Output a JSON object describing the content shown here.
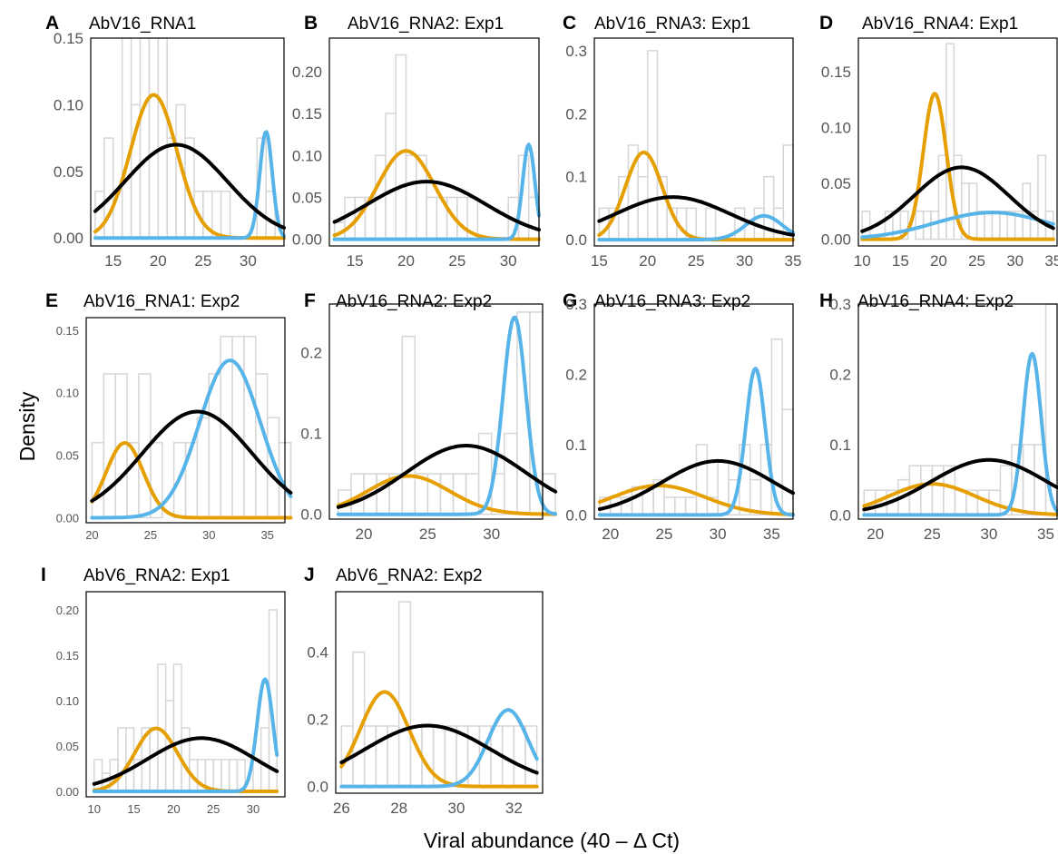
{
  "figure": {
    "ylabel": "Density",
    "xlabel": "Viral abundance (40 – Δ Ct)"
  },
  "colors": {
    "low_component": "#E69F00",
    "high_component": "#56B4E9",
    "single_component": "#000000",
    "histogram": "#d6d6d6"
  },
  "chart_data": [
    {
      "id": "A",
      "title": "AbV16_RNA1",
      "type": "histogram+density",
      "xlim": [
        12.5,
        34
      ],
      "ylim": [
        -0.006,
        0.15
      ],
      "xticks": [
        "15",
        "20",
        "25",
        "30"
      ],
      "yticks": [
        "0.00",
        "0.05",
        "0.10",
        "0.15"
      ],
      "hist": {
        "start": 13,
        "width": 1,
        "heights": [
          0.035,
          0.075,
          0.035,
          0.15,
          0.1,
          0.15,
          0.15,
          0.15,
          0.075,
          0.1,
          0.075,
          0.035,
          0.035,
          0.035,
          0.035,
          0,
          0,
          0,
          0.075,
          0.035,
          0
        ]
      },
      "series": [
        {
          "component": "low",
          "mean": 19.5,
          "sd": 2.6,
          "weight": 0.7
        },
        {
          "component": "high",
          "mean": 32.0,
          "sd": 0.7,
          "weight": 0.14
        },
        {
          "component": "single",
          "mean": 22.0,
          "sd": 5.7,
          "weight": 1.0
        }
      ]
    },
    {
      "id": "B",
      "title": "AbV16_RNA2: Exp1",
      "type": "histogram+density",
      "xlim": [
        12.5,
        33
      ],
      "ylim": [
        -0.008,
        0.24
      ],
      "xticks": [
        "15",
        "20",
        "25",
        "30"
      ],
      "yticks": [
        "0.00",
        "0.05",
        "0.10",
        "0.15",
        "0.20"
      ],
      "hist": {
        "start": 13,
        "width": 1,
        "heights": [
          0.02,
          0.05,
          0.05,
          0.05,
          0.1,
          0.15,
          0.22,
          0.1,
          0.1,
          0.05,
          0.05,
          0.05,
          0.05,
          0.05,
          0,
          0,
          0,
          0.05,
          0.1,
          0.05
        ]
      },
      "series": [
        {
          "component": "low",
          "mean": 20.0,
          "sd": 2.8,
          "weight": 0.74
        },
        {
          "component": "high",
          "mean": 32.0,
          "sd": 0.6,
          "weight": 0.17
        },
        {
          "component": "single",
          "mean": 22.0,
          "sd": 5.8,
          "weight": 1.0
        }
      ]
    },
    {
      "id": "C",
      "title": "AbV16_RNA3: Exp1",
      "type": "histogram+density",
      "xlim": [
        14.5,
        35
      ],
      "ylim": [
        -0.01,
        0.32
      ],
      "xticks": [
        "15",
        "20",
        "25",
        "30",
        "35"
      ],
      "yticks": [
        "0.0",
        "0.1",
        "0.2",
        "0.3"
      ],
      "hist": {
        "start": 15,
        "width": 1,
        "heights": [
          0.05,
          0.05,
          0.1,
          0.15,
          0.1,
          0.3,
          0.1,
          0.05,
          0.05,
          0.05,
          0,
          0.05,
          0,
          0,
          0.05,
          0,
          0.05,
          0.1,
          0.05,
          0.15
        ]
      },
      "series": [
        {
          "component": "low",
          "mean": 19.6,
          "sd": 1.9,
          "weight": 0.66
        },
        {
          "component": "high",
          "mean": 32.0,
          "sd": 1.9,
          "weight": 0.18
        },
        {
          "component": "single",
          "mean": 22.6,
          "sd": 5.9,
          "weight": 1.0
        }
      ]
    },
    {
      "id": "D",
      "title": "AbV16_RNA4: Exp1",
      "type": "histogram+density",
      "xlim": [
        9.5,
        35.5
      ],
      "ylim": [
        -0.006,
        0.18
      ],
      "xticks": [
        "10",
        "15",
        "20",
        "25",
        "30",
        "35"
      ],
      "yticks": [
        "0.00",
        "0.05",
        "0.10",
        "0.15"
      ],
      "hist": {
        "start": 10,
        "width": 1,
        "heights": [
          0.025,
          0,
          0,
          0.025,
          0.025,
          0.025,
          0,
          0.025,
          0.025,
          0.025,
          0.075,
          0.175,
          0.075,
          0.05,
          0.05,
          0.025,
          0.025,
          0.025,
          0.025,
          0.025,
          0.025,
          0.05,
          0.025,
          0.075,
          0.025
        ]
      },
      "series": [
        {
          "component": "low",
          "mean": 19.5,
          "sd": 1.5,
          "weight": 0.49
        },
        {
          "component": "high",
          "mean": 27.0,
          "sd": 7.5,
          "weight": 0.45
        },
        {
          "component": "single",
          "mean": 23.0,
          "sd": 6.2,
          "weight": 1.0
        }
      ]
    },
    {
      "id": "E",
      "title": "AbV16_RNA1: Exp2",
      "type": "histogram+density",
      "xlim": [
        19.5,
        36.5
      ],
      "ylim": [
        -0.004,
        0.16
      ],
      "xticks": [
        "20",
        "25",
        "30",
        "35"
      ],
      "yticks": [
        "0.00",
        "0.05",
        "0.10",
        "0.15"
      ],
      "hist": {
        "start": 20,
        "width": 1,
        "heights": [
          0.06,
          0.115,
          0.115,
          0.06,
          0.115,
          0.06,
          0,
          0.06,
          0.06,
          0.08,
          0.115,
          0.145,
          0.145,
          0.145,
          0.115,
          0.08,
          0.06
        ]
      },
      "series": [
        {
          "component": "low",
          "mean": 22.8,
          "sd": 1.6,
          "weight": 0.24
        },
        {
          "component": "high",
          "mean": 31.8,
          "sd": 2.6,
          "weight": 0.82
        },
        {
          "component": "single",
          "mean": 29.0,
          "sd": 4.7,
          "weight": 1.0
        }
      ]
    },
    {
      "id": "F",
      "title": "AbV16_RNA2: Exp2",
      "type": "histogram+density",
      "xlim": [
        17.3,
        34
      ],
      "ylim": [
        -0.006,
        0.26
      ],
      "xticks": [
        "20",
        "25",
        "30"
      ],
      "yticks": [
        "0.0",
        "0.1",
        "0.2"
      ],
      "hist": {
        "start": 18,
        "width": 1,
        "heights": [
          0.03,
          0.05,
          0.05,
          0.05,
          0.05,
          0.22,
          0.05,
          0.05,
          0.05,
          0.05,
          0.05,
          0.1,
          0.05,
          0.1,
          0.25,
          0.25,
          0.05
        ]
      },
      "series": [
        {
          "component": "low",
          "mean": 23.5,
          "sd": 3.2,
          "weight": 0.38
        },
        {
          "component": "high",
          "mean": 31.8,
          "sd": 0.9,
          "weight": 0.55
        },
        {
          "component": "single",
          "mean": 28.0,
          "sd": 4.7,
          "weight": 1.0
        }
      ]
    },
    {
      "id": "G",
      "title": "AbV16_RNA3: Exp2",
      "type": "histogram+density",
      "xlim": [
        18.5,
        37
      ],
      "ylim": [
        -0.006,
        0.3
      ],
      "xticks": [
        "20",
        "25",
        "30",
        "35"
      ],
      "yticks": [
        "0.0",
        "0.1",
        "0.2",
        "0.3"
      ],
      "hist": {
        "start": 19,
        "width": 1,
        "heights": [
          0.025,
          0.025,
          0.025,
          0.04,
          0.04,
          0.05,
          0.025,
          0.025,
          0.025,
          0.1,
          0.025,
          0.075,
          0.05,
          0.1,
          0.05,
          0.1,
          0.25,
          0.15
        ]
      },
      "series": [
        {
          "component": "low",
          "mean": 24.5,
          "sd": 4.3,
          "weight": 0.45
        },
        {
          "component": "high",
          "mean": 33.5,
          "sd": 0.9,
          "weight": 0.47
        },
        {
          "component": "single",
          "mean": 30.0,
          "sd": 5.2,
          "weight": 1.0
        }
      ]
    },
    {
      "id": "H",
      "title": "AbV16_RNA4: Exp2",
      "type": "histogram+density",
      "xlim": [
        18.5,
        36
      ],
      "ylim": [
        -0.006,
        0.3
      ],
      "xticks": [
        "20",
        "25",
        "30",
        "35"
      ],
      "yticks": [
        "0.0",
        "0.1",
        "0.2",
        "0.3"
      ],
      "hist": {
        "start": 19,
        "width": 1,
        "heights": [
          0.035,
          0.035,
          0.035,
          0.05,
          0.07,
          0.07,
          0.07,
          0.07,
          0.035,
          0.035,
          0.035,
          0.035,
          0.07,
          0.1,
          0.1,
          0.1,
          0.3
        ]
      },
      "series": [
        {
          "component": "low",
          "mean": 25.0,
          "sd": 3.8,
          "weight": 0.42
        },
        {
          "component": "high",
          "mean": 33.8,
          "sd": 0.8,
          "weight": 0.46
        },
        {
          "component": "single",
          "mean": 30.0,
          "sd": 5.1,
          "weight": 1.0
        }
      ]
    },
    {
      "id": "I",
      "title": "AbV6_RNA2: Exp1",
      "type": "histogram+density",
      "xlim": [
        9,
        34
      ],
      "ylim": [
        -0.006,
        0.22
      ],
      "xticks": [
        "10",
        "15",
        "20",
        "25",
        "30"
      ],
      "yticks": [
        "0.00",
        "0.05",
        "0.10",
        "0.15",
        "0.20"
      ],
      "hist": {
        "start": 10,
        "width": 1,
        "heights": [
          0.035,
          0.02,
          0.035,
          0.07,
          0.07,
          0.035,
          0.07,
          0.07,
          0.14,
          0.1,
          0.14,
          0.07,
          0.035,
          0.035,
          0.035,
          0.035,
          0.035,
          0.035,
          0.035,
          0,
          0.035,
          0.07,
          0.2
        ]
      },
      "series": [
        {
          "component": "low",
          "mean": 17.8,
          "sd": 2.7,
          "weight": 0.47
        },
        {
          "component": "high",
          "mean": 31.5,
          "sd": 1.0,
          "weight": 0.31
        },
        {
          "component": "single",
          "mean": 23.5,
          "sd": 6.8,
          "weight": 1.0
        }
      ]
    },
    {
      "id": "J",
      "title": "AbV6_RNA2: Exp2",
      "type": "histogram+density",
      "xlim": [
        25.8,
        33
      ],
      "ylim": [
        -0.02,
        0.58
      ],
      "xticks": [
        "26",
        "28",
        "30",
        "32"
      ],
      "yticks": [
        "0.0",
        "0.2",
        "0.4"
      ],
      "hist": {
        "start": 26,
        "width": 0.4,
        "heights": [
          0.18,
          0.4,
          0.18,
          0.18,
          0.18,
          0.55,
          0.18,
          0.18,
          0.18,
          0.18,
          0.18,
          0.18,
          0.18,
          0.18,
          0.18,
          0.18,
          0.18
        ]
      },
      "series": [
        {
          "component": "low",
          "mean": 27.5,
          "sd": 0.85,
          "weight": 0.6
        },
        {
          "component": "high",
          "mean": 31.8,
          "sd": 0.7,
          "weight": 0.4
        },
        {
          "component": "single",
          "mean": 29.0,
          "sd": 2.2,
          "weight": 1.0
        }
      ]
    }
  ]
}
